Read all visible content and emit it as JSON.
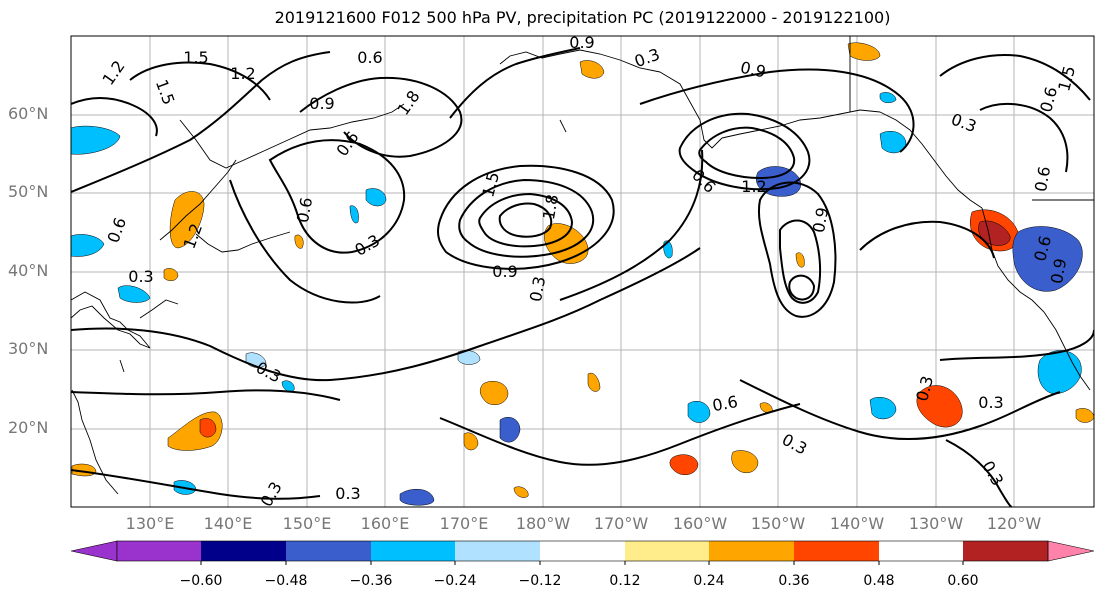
{
  "title": "2019121600 F012 500 hPa PV, precipitation PC (2019122000 - 2019122100)",
  "lat_labels": [
    "60°N",
    "50°N",
    "40°N",
    "30°N",
    "20°N"
  ],
  "lon_labels": [
    "130°E",
    "140°E",
    "150°E",
    "160°E",
    "170°E",
    "180°W",
    "170°W",
    "160°W",
    "150°W",
    "140°W",
    "130°W",
    "120°W"
  ],
  "contour_labels": [
    "1.2",
    "1.5",
    "0.6",
    "0.9",
    "1.2",
    "1.5",
    "1.8",
    "0.9",
    "0.6",
    "0.3",
    "0.9",
    "1.5",
    "1.2",
    "0.6",
    "0.3",
    "0.6",
    "0.3",
    "1.2",
    "0.9",
    "0.9",
    "0.3",
    "0.6",
    "0.3",
    "0.3",
    "0.6",
    "0.3",
    "0.3",
    "0.3",
    "0.3",
    "0.3",
    "1.5",
    "0.6",
    "0.9",
    "0.6",
    "1.8",
    "0.3",
    "0.6"
  ],
  "colorbar": {
    "ticks": [
      "−0.60",
      "−0.48",
      "−0.36",
      "−0.24",
      "−0.12",
      "0.12",
      "0.24",
      "0.36",
      "0.48",
      "0.60"
    ],
    "colors": [
      "#9a32cd",
      "#00008b",
      "#3a5fcd",
      "#00bfff",
      "#b0e2ff",
      "#ffffff",
      "#ffec8b",
      "#ffa500",
      "#ff4500",
      "#b22222",
      "#ff82ab"
    ]
  }
}
